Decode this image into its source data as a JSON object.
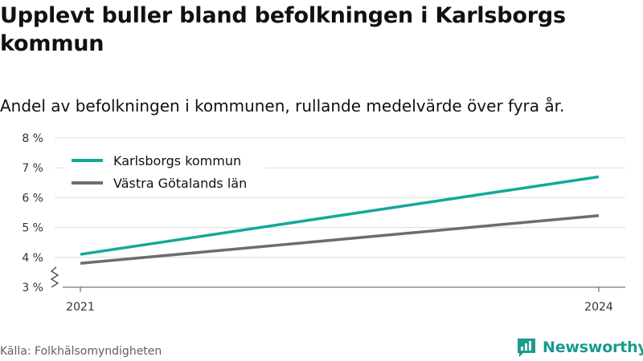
{
  "title": "Upplevt buller bland befolkningen i Karlsborgs kommun",
  "subtitle": "Andel av befolkningen i kommunen, rullande medelvärde över fyra år.",
  "source": "Källa: Folkhälsomyndigheten",
  "brand": {
    "name": "Newsworthy",
    "color": "#1c9a8f"
  },
  "chart_data": {
    "type": "line",
    "x": [
      2021,
      2024
    ],
    "x_tick_labels": [
      "2021",
      "2024"
    ],
    "y_ticks": [
      3,
      4,
      5,
      6,
      7,
      8
    ],
    "y_tick_labels": [
      "3 %",
      "4 %",
      "5 %",
      "6 %",
      "7 %",
      "8 %"
    ],
    "ylim": [
      3,
      8
    ],
    "y_axis_break": true,
    "grid": true,
    "legend_position": "top-left",
    "series": [
      {
        "name": "Karlsborgs kommun",
        "values": [
          4.1,
          6.7
        ],
        "color": "#14a89a"
      },
      {
        "name": "Västra Götalands län",
        "values": [
          3.8,
          5.4
        ],
        "color": "#706b70"
      }
    ]
  }
}
